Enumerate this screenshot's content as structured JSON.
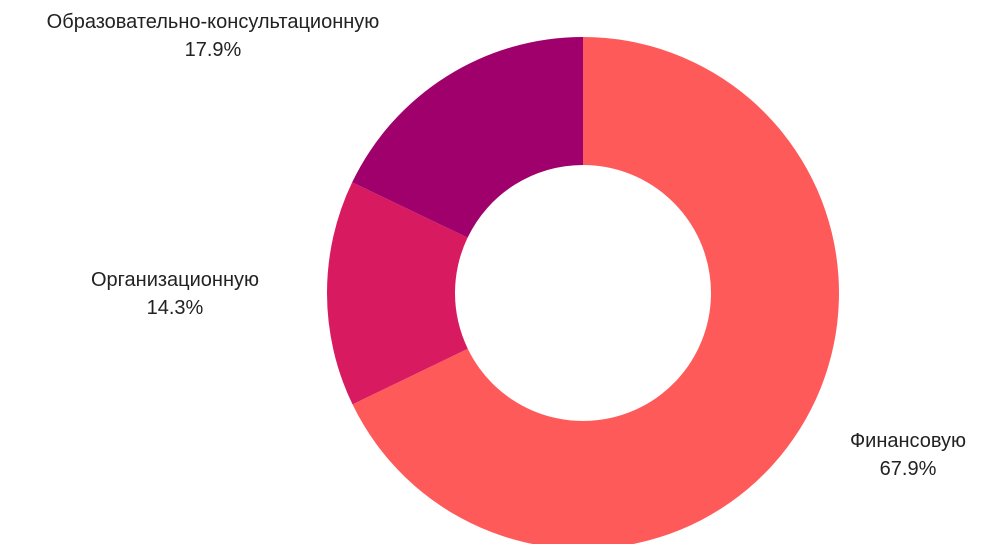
{
  "chart_data": {
    "type": "pie",
    "donut": true,
    "slices": [
      {
        "label": "Финансовую",
        "value": 67.9,
        "display": "67.9%",
        "color": "#ff5a5a"
      },
      {
        "label": "Организационную",
        "value": 14.3,
        "display": "14.3%",
        "color": "#d81b60"
      },
      {
        "label": "Образовательно-консультационную",
        "value": 17.9,
        "display": "17.9%",
        "color": "#a0006b"
      }
    ],
    "legend": "none"
  }
}
